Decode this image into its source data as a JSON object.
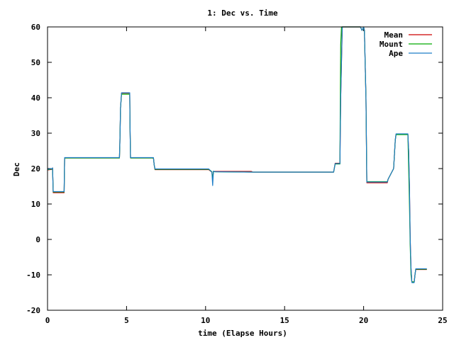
{
  "chart_data": {
    "type": "line",
    "title": "1: Dec vs. Time",
    "xlabel": "time (Elapse Hours)",
    "ylabel": "Dec",
    "xlim": [
      0,
      25
    ],
    "ylim": [
      -20,
      60
    ],
    "xticks": [
      0,
      5,
      10,
      15,
      20,
      25
    ],
    "yticks": [
      -20,
      -10,
      0,
      10,
      20,
      30,
      40,
      50,
      60
    ],
    "grid": false,
    "legend_position": "top-right",
    "series": [
      {
        "name": "Mean",
        "color": "#cc0000",
        "x": [
          0,
          0.3,
          0.32,
          0.36,
          0.4,
          1.05,
          1.08,
          1.12,
          4.55,
          4.58,
          4.62,
          4.68,
          4.75,
          5.2,
          5.22,
          5.25,
          5.3,
          6.7,
          6.75,
          6.8,
          10.2,
          10.4,
          10.45,
          10.5,
          10.6,
          12.9,
          13.0,
          18.1,
          18.2,
          18.5,
          18.55,
          18.6,
          18.65,
          18.7,
          19.8,
          19.9,
          20.0,
          20.05,
          20.15,
          20.2,
          21.0,
          21.5,
          21.55,
          21.9,
          22.0,
          22.05,
          22.1,
          22.8,
          22.85,
          22.9,
          22.95,
          23.0,
          23.05,
          23.2,
          23.25,
          23.3,
          23.35,
          24.0
        ],
        "values": [
          19.6,
          19.8,
          20.2,
          13.2,
          13.2,
          13.2,
          23.0,
          23.0,
          23.0,
          27.5,
          37.0,
          41.3,
          41.3,
          41.3,
          32.0,
          23.0,
          23.0,
          23.0,
          21.0,
          19.7,
          19.7,
          19.0,
          17.0,
          19.2,
          19.2,
          19.2,
          19.0,
          19.0,
          21.5,
          21.5,
          40.0,
          50.0,
          60.0,
          60.0,
          60.0,
          59.0,
          60.0,
          59.0,
          40.0,
          16.0,
          16.0,
          16.0,
          17.0,
          20.0,
          28.0,
          29.7,
          29.7,
          29.7,
          25.0,
          15.0,
          0.0,
          -8.0,
          -12.0,
          -12.0,
          -10.0,
          -8.5,
          -8.5,
          -8.5
        ]
      },
      {
        "name": "Mount",
        "color": "#00aa00",
        "x": [
          0,
          0.3,
          0.32,
          0.36,
          0.4,
          1.05,
          1.08,
          1.12,
          4.55,
          4.58,
          4.62,
          4.68,
          4.75,
          5.2,
          5.22,
          5.25,
          5.3,
          6.7,
          6.75,
          6.8,
          10.2,
          10.4,
          10.45,
          10.5,
          10.6,
          13.0,
          18.1,
          18.2,
          18.5,
          18.52,
          18.55,
          18.6,
          18.65,
          19.8,
          19.9,
          20.0,
          20.05,
          20.15,
          20.2,
          21.5,
          21.55,
          21.9,
          22.0,
          22.05,
          22.1,
          22.8,
          22.85,
          22.9,
          22.95,
          23.0,
          23.05,
          23.2,
          23.25,
          23.3,
          23.35,
          24.0
        ],
        "values": [
          19.7,
          19.9,
          20.1,
          13.4,
          13.4,
          13.4,
          23.0,
          23.0,
          23.0,
          27.5,
          37.0,
          41.0,
          41.0,
          41.0,
          32.0,
          23.0,
          23.0,
          23.0,
          21.0,
          19.8,
          19.8,
          19.1,
          17.0,
          19.2,
          19.1,
          19.0,
          19.0,
          21.3,
          21.3,
          35.0,
          55.0,
          60.0,
          60.0,
          60.0,
          59.0,
          60.0,
          59.0,
          40.0,
          16.3,
          16.3,
          17.0,
          20.0,
          28.0,
          29.6,
          29.6,
          29.6,
          20.0,
          10.0,
          -2.0,
          -10.0,
          -12.0,
          -12.0,
          -10.0,
          -8.4,
          -8.4,
          -8.4
        ]
      },
      {
        "name": "Ape",
        "color": "#1e7ec8",
        "x": [
          0,
          0.3,
          0.32,
          0.36,
          0.4,
          1.05,
          1.08,
          1.12,
          4.55,
          4.58,
          4.62,
          4.68,
          4.75,
          5.2,
          5.22,
          5.25,
          5.3,
          6.7,
          6.75,
          6.8,
          10.2,
          10.4,
          10.45,
          10.5,
          10.6,
          13.0,
          18.1,
          18.2,
          18.5,
          18.55,
          18.6,
          18.65,
          18.7,
          19.8,
          19.9,
          20.0,
          20.05,
          20.15,
          20.2,
          21.5,
          21.55,
          21.9,
          22.0,
          22.05,
          22.1,
          22.8,
          22.85,
          22.9,
          22.95,
          23.0,
          23.05,
          23.2,
          23.25,
          23.3,
          23.35,
          24.0
        ],
        "values": [
          19.8,
          20.0,
          20.2,
          13.5,
          13.5,
          13.5,
          23.1,
          23.1,
          23.1,
          27.5,
          37.0,
          41.4,
          41.4,
          41.4,
          32.0,
          23.1,
          23.1,
          23.1,
          21.0,
          19.9,
          19.9,
          19.0,
          15.2,
          19.3,
          19.1,
          19.0,
          19.0,
          21.4,
          21.4,
          40.0,
          50.0,
          60.0,
          60.0,
          60.0,
          59.0,
          60.0,
          59.0,
          40.0,
          16.2,
          16.2,
          17.0,
          20.0,
          28.0,
          29.8,
          29.8,
          29.8,
          25.0,
          15.0,
          0.0,
          -8.0,
          -12.2,
          -12.2,
          -10.0,
          -8.3,
          -8.3,
          -8.3
        ]
      }
    ]
  }
}
